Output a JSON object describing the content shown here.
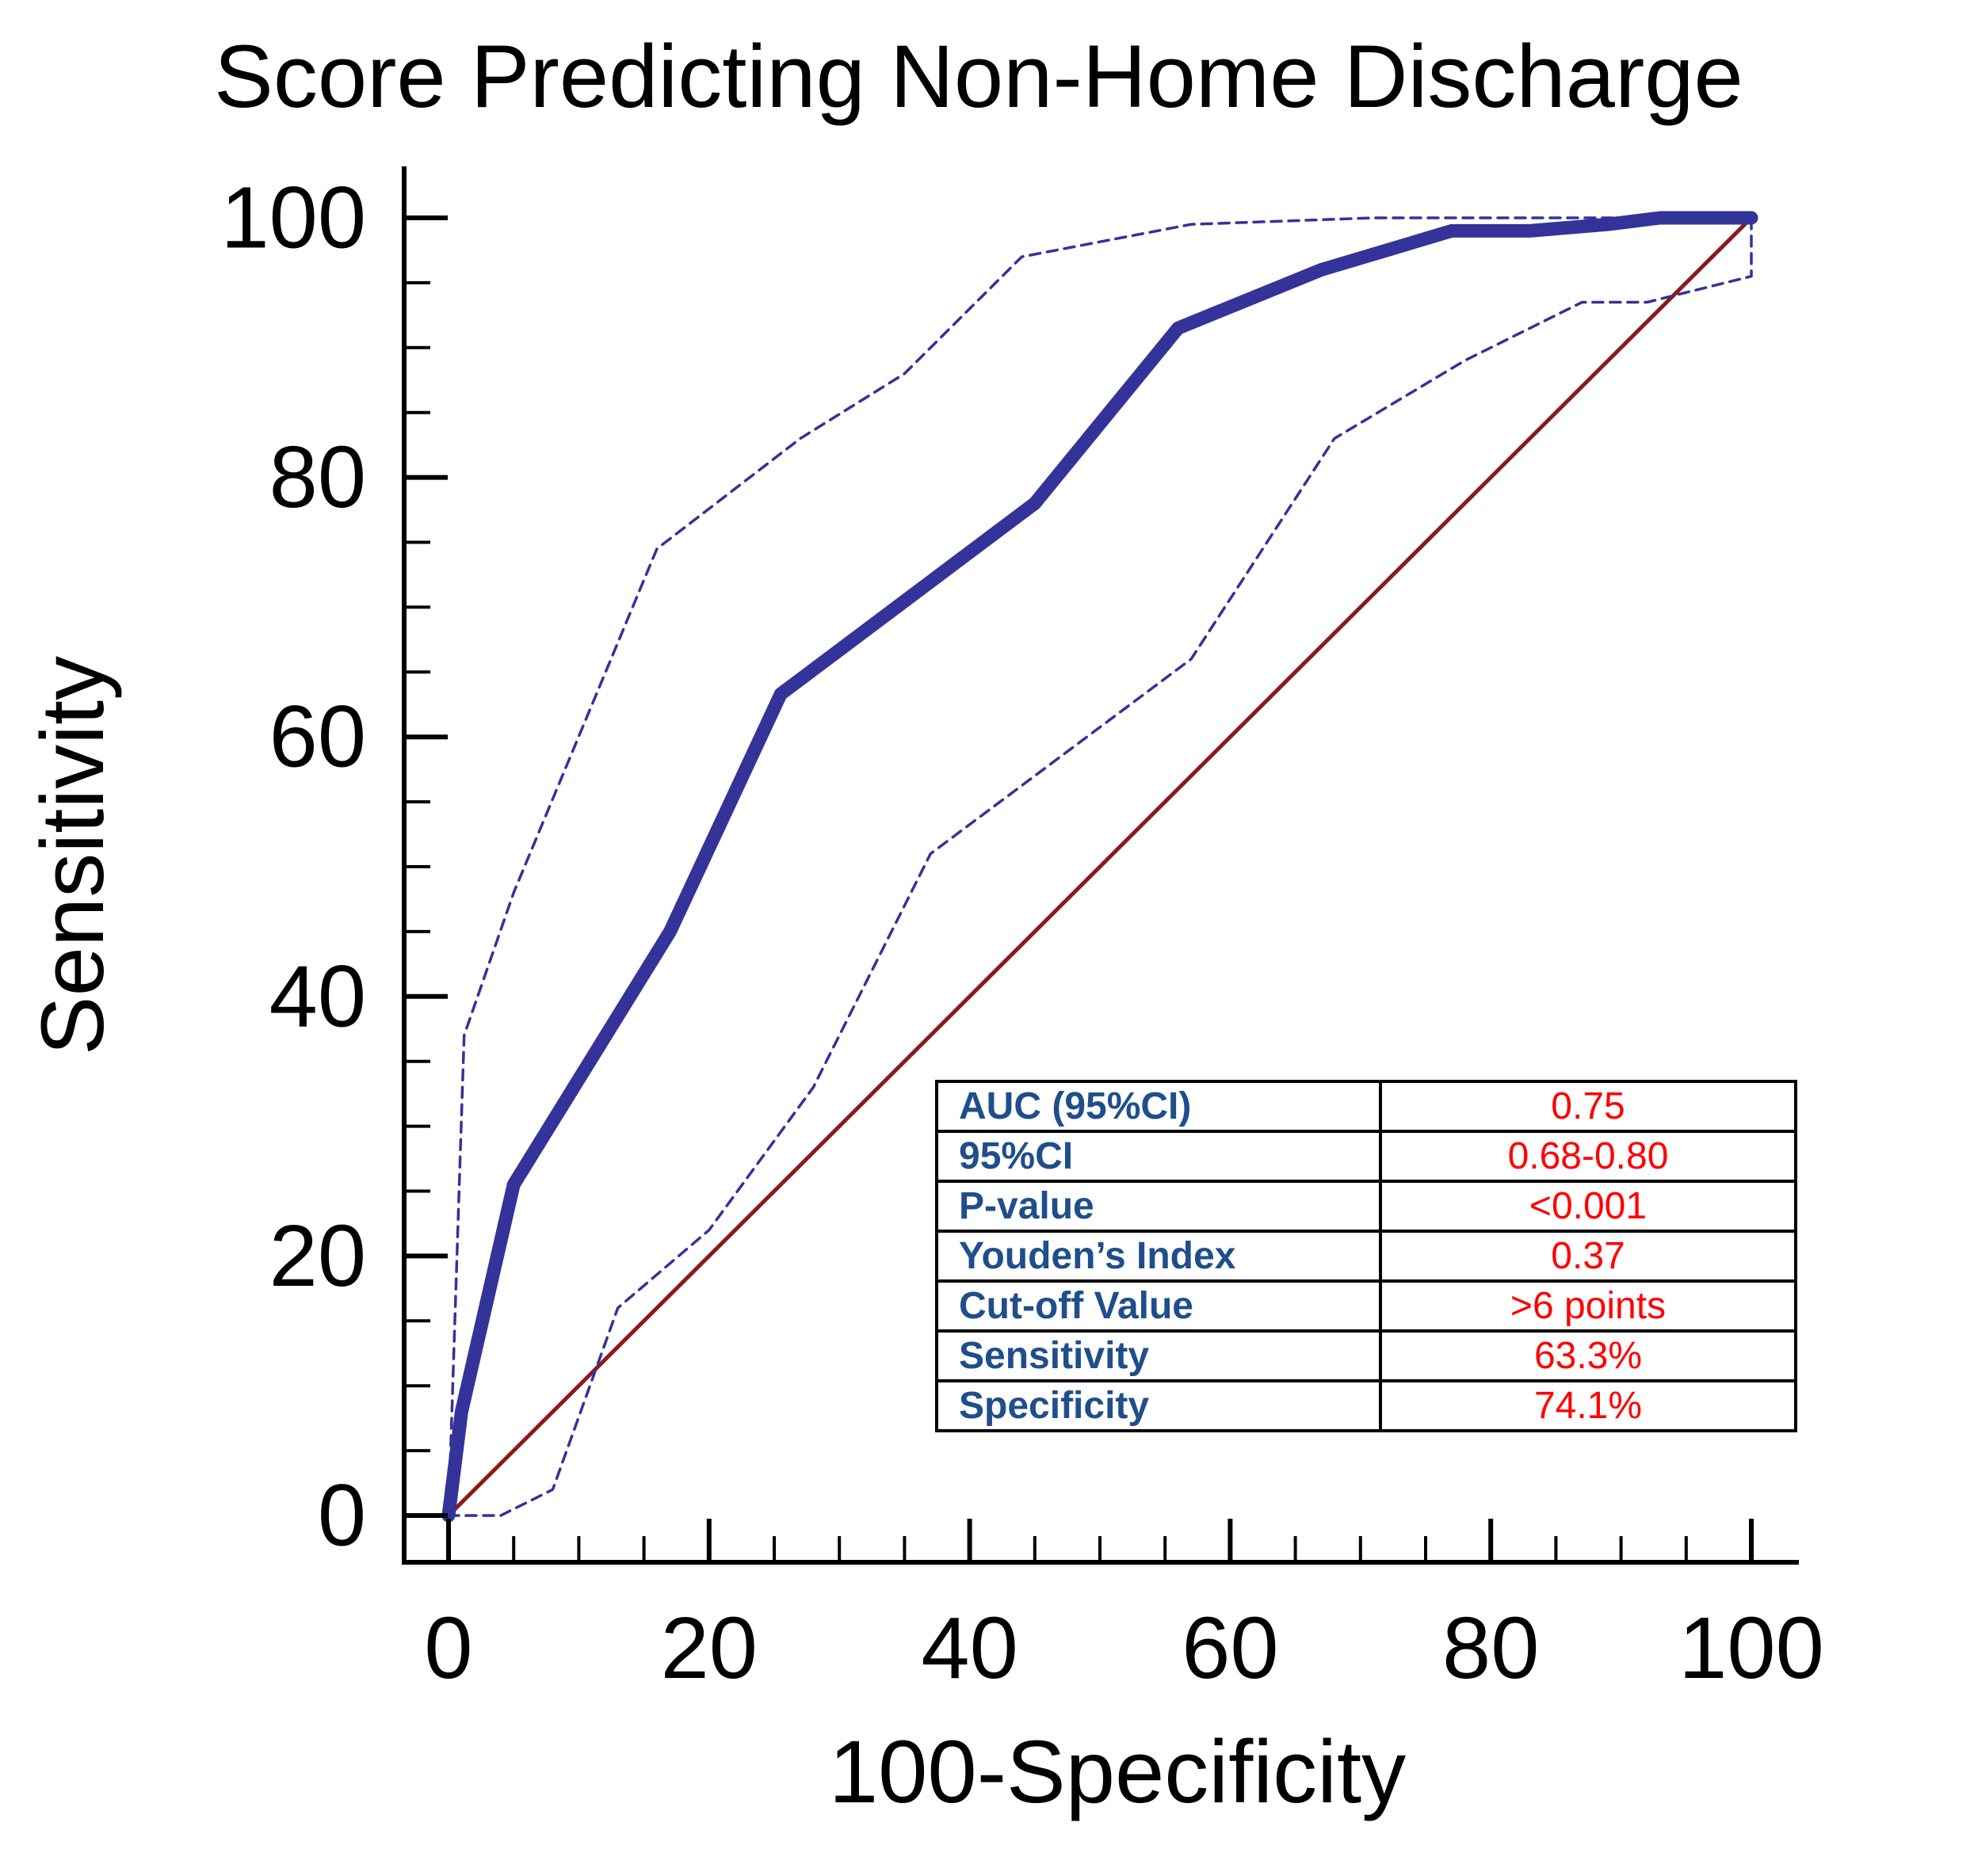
{
  "chart_data": {
    "type": "line",
    "title": "Score Predicting Non-Home Discharge",
    "xlabel": "100-Specificity",
    "ylabel": "Sensitivity",
    "xlim": [
      0,
      100
    ],
    "ylim": [
      0,
      100
    ],
    "x_ticks": [
      "0",
      "20",
      "40",
      "60",
      "80",
      "100"
    ],
    "y_ticks": [
      "0",
      "20",
      "40",
      "60",
      "80",
      "100"
    ],
    "grid": false,
    "legend": "none",
    "series": [
      {
        "role": "roc-curve",
        "style": "solid-thick",
        "color": "#33339a",
        "x": [
          0,
          1,
          5,
          17,
          25.5,
          45,
          56,
          67,
          77,
          83,
          89,
          93,
          100
        ],
        "y": [
          0,
          8,
          25.5,
          45,
          63.3,
          78,
          91.5,
          96,
          99,
          99,
          99.5,
          100,
          100
        ]
      },
      {
        "role": "ci-upper",
        "style": "dashed",
        "color": "#33339a",
        "x": [
          0,
          1.2,
          5,
          16,
          27,
          35,
          44,
          57,
          71,
          100
        ],
        "y": [
          0,
          37,
          48,
          74.5,
          83,
          88,
          97,
          99.5,
          100,
          100
        ]
      },
      {
        "role": "ci-lower",
        "style": "dashed",
        "color": "#33339a",
        "x": [
          0,
          4,
          8,
          13,
          20,
          28,
          37,
          45,
          57,
          68,
          78,
          87,
          92,
          100,
          100
        ],
        "y": [
          0,
          0,
          2,
          16,
          22,
          33,
          51,
          57,
          66,
          83,
          89,
          93.5,
          93.5,
          95.5,
          100
        ]
      },
      {
        "role": "reference-diagonal",
        "style": "solid",
        "color": "#8b1a1a",
        "x": [
          0,
          100
        ],
        "y": [
          0,
          100
        ]
      }
    ]
  },
  "stats_table": {
    "key_color": "#1f4e8c",
    "value_color": "#ff0000",
    "rows": [
      {
        "label": "AUC (95%CI)",
        "value": "0.75"
      },
      {
        "label": "95%CI",
        "value": "0.68-0.80"
      },
      {
        "label": "P-value",
        "value": "<0.001"
      },
      {
        "label": "Youden’s Index",
        "value": "0.37"
      },
      {
        "label": "Cut-off Value",
        "value": ">6 points"
      },
      {
        "label": "Sensitivity",
        "value": "63.3%"
      },
      {
        "label": "Specificity",
        "value": "74.1%"
      }
    ]
  }
}
